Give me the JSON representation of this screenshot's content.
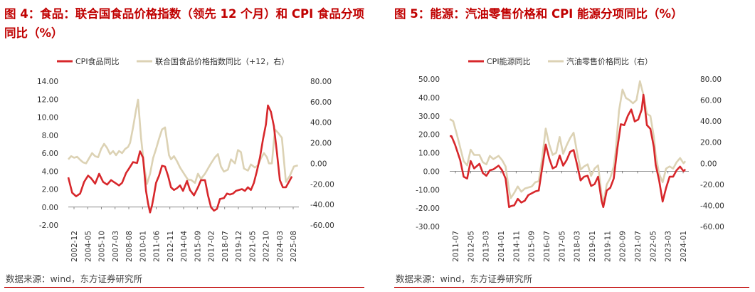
{
  "left": {
    "title": "图 4：食品：联合国食品价格指数（领先 12 个月）和 CPI 食品分项同比（%）",
    "source": "数据来源：wind，东方证券研究所",
    "chart_data": {
      "type": "line",
      "legend": [
        "CPI食品同比",
        "联合国食品价格指数同比（+12，右）"
      ],
      "colors": {
        "cpi": "#d7272b",
        "un": "#dcd2b4",
        "title": "#c00000"
      },
      "y_left": {
        "min": -2,
        "max": 14,
        "step": 2,
        "ticks": [
          "-2.00",
          "0.00",
          "2.00",
          "4.00",
          "6.00",
          "8.00",
          "10.00",
          "12.00",
          "14.00"
        ]
      },
      "y_right": {
        "min": -60,
        "max": 80,
        "step": 20,
        "ticks": [
          "-60.00",
          "-40.00",
          "-20.00",
          "0.00",
          "20.00",
          "40.00",
          "60.00",
          "80.00"
        ]
      },
      "x": {
        "start": 2002.917,
        "end": 2026.0,
        "ticks": [
          "2002-12",
          "2004-05",
          "2005-10",
          "2007-03",
          "2008-08",
          "2010-01",
          "2011-06",
          "2012-11",
          "2014-04",
          "2015-09",
          "2017-02",
          "2018-07",
          "2019-12",
          "2021-05",
          "2022-10",
          "2024-03",
          "2025-08"
        ]
      },
      "series": [
        {
          "name": "CPI食品同比",
          "axis": "left",
          "x": [
            2002.92,
            2003.3,
            2003.7,
            2004.1,
            2004.5,
            2004.9,
            2005.2,
            2005.6,
            2006.0,
            2006.4,
            2006.8,
            2007.2,
            2007.6,
            2008.0,
            2008.3,
            2008.7,
            2009.0,
            2009.4,
            2009.8,
            2010.1,
            2010.4,
            2010.7,
            2010.9,
            2011.1,
            2011.3,
            2011.5,
            2011.7,
            2012.0,
            2012.3,
            2012.6,
            2012.9,
            2013.2,
            2013.5,
            2013.8,
            2014.1,
            2014.4,
            2014.8,
            2015.1,
            2015.5,
            2015.9,
            2016.2,
            2016.6,
            2016.9,
            2017.2,
            2017.5,
            2017.8,
            2018.1,
            2018.5,
            2018.8,
            2019.1,
            2019.4,
            2019.7,
            2020.0,
            2020.3,
            2020.6,
            2020.9,
            2021.2,
            2021.5,
            2021.8,
            2022.1,
            2022.4,
            2022.7,
            2022.9,
            2023.2,
            2023.5,
            2023.8,
            2024.1,
            2024.4,
            2024.7,
            2025.0,
            2025.3
          ],
          "y": [
            3.3,
            1.6,
            1.2,
            1.5,
            2.8,
            3.5,
            3.2,
            2.6,
            3.7,
            2.8,
            2.5,
            3.0,
            2.7,
            2.4,
            2.7,
            3.8,
            4.3,
            5.0,
            4.9,
            6.2,
            5.5,
            1.8,
            0.4,
            -0.6,
            0.2,
            1.4,
            2.7,
            3.5,
            4.6,
            4.5,
            3.5,
            2.2,
            1.9,
            2.1,
            2.4,
            1.8,
            2.9,
            1.9,
            1.3,
            2.2,
            3.0,
            3.0,
            1.3,
            0.0,
            -0.4,
            -0.2,
            0.9,
            1.0,
            1.5,
            1.4,
            1.5,
            1.8,
            1.9,
            2.0,
            1.8,
            2.2,
            1.9,
            2.7,
            4.0,
            5.5,
            7.5,
            9.2,
            11.3,
            10.6,
            9.0,
            6.1,
            3.0,
            2.2,
            2.2,
            2.8,
            3.4
          ]
        },
        {
          "name": "联合国食品价格指数同比（+12，右）",
          "axis": "right",
          "x": [
            2002.92,
            2003.2,
            2003.5,
            2003.8,
            2004.1,
            2004.4,
            2004.7,
            2005.0,
            2005.3,
            2005.6,
            2005.9,
            2006.2,
            2006.5,
            2006.8,
            2007.1,
            2007.4,
            2007.7,
            2008.0,
            2008.3,
            2008.6,
            2008.9,
            2009.1,
            2009.4,
            2009.7,
            2009.9,
            2010.0,
            2010.2,
            2010.5,
            2010.8,
            2011.1,
            2011.4,
            2011.7,
            2012.0,
            2012.3,
            2012.6,
            2012.9,
            2013.0,
            2013.2,
            2013.5,
            2013.8,
            2014.1,
            2014.5,
            2014.9,
            2015.2,
            2015.6,
            2015.9,
            2016.2,
            2016.6,
            2016.9,
            2017.2,
            2017.6,
            2017.9,
            2018.2,
            2018.5,
            2018.9,
            2019.2,
            2019.6,
            2019.9,
            2020.2,
            2020.5,
            2020.9,
            2021.2,
            2021.6,
            2021.9,
            2022.2,
            2022.5,
            2022.8,
            2023.0,
            2023.3,
            2023.6,
            2023.9,
            2024.3,
            2024.7,
            2025.1,
            2025.5,
            2025.9
          ],
          "y": [
            4.0,
            7.0,
            5.5,
            6.5,
            3.5,
            1.0,
            0.0,
            5.0,
            10.0,
            7.0,
            6.0,
            14.0,
            19.0,
            15.0,
            9.0,
            12.0,
            8.0,
            12.0,
            10.0,
            14.0,
            16.0,
            20.0,
            35.0,
            52.0,
            62.0,
            50.0,
            25.0,
            -2.0,
            -20.0,
            -10.0,
            5.0,
            14.0,
            24.0,
            33.0,
            35.0,
            15.0,
            8.0,
            4.0,
            7.0,
            2.0,
            -4.0,
            -10.0,
            -16.0,
            -16.0,
            -19.0,
            -10.0,
            -15.0,
            -10.0,
            -5.0,
            0.0,
            6.0,
            9.0,
            -3.0,
            -8.0,
            -6.0,
            4.0,
            0.0,
            13.0,
            11.0,
            -5.0,
            -7.0,
            -1.0,
            -4.0,
            -2.0,
            5.0,
            10.0,
            6.0,
            0.0,
            0.0,
            33.0,
            30.0,
            25.0,
            -18.0,
            -12.0,
            -3.0,
            -2.0
          ]
        }
      ]
    }
  },
  "right": {
    "title": "图 5：能源：汽油零售价格和 CPI 能源分项同比（%）",
    "source": "数据来源：wind，东方证券研究所",
    "chart_data": {
      "type": "line",
      "legend": [
        "CPI能源同比",
        "汽油零售价格同比（右）"
      ],
      "colors": {
        "cpi": "#d7272b",
        "gas": "#dcd2b4",
        "title": "#c00000"
      },
      "y_left": {
        "min": -30,
        "max": 50,
        "step": 10,
        "ticks": [
          "-30.00",
          "-20.00",
          "-10.00",
          "0.00",
          "10.00",
          "20.00",
          "30.00",
          "40.00",
          "50.00"
        ]
      },
      "y_right": {
        "min": -60,
        "max": 80,
        "step": 20,
        "ticks": [
          "-60.00",
          "-40.00",
          "-20.00",
          "0.00",
          "20.00",
          "40.00",
          "60.00",
          "80.00"
        ]
      },
      "x": {
        "start": 2011.5,
        "end": 2025.2,
        "ticks": [
          "2011-07",
          "2012-05",
          "2013-03",
          "2014-01",
          "2014-11",
          "2015-09",
          "2016-07",
          "2017-05",
          "2018-03",
          "2019-01",
          "2019-11",
          "2020-09",
          "2021-07",
          "2022-05",
          "2023-03",
          "2024-01"
        ]
      },
      "series": [
        {
          "name": "CPI能源同比",
          "axis": "left",
          "x": [
            2011.5,
            2011.6,
            2011.8,
            2012.1,
            2012.3,
            2012.5,
            2012.7,
            2012.9,
            2013.2,
            2013.4,
            2013.6,
            2013.8,
            2014.0,
            2014.3,
            2014.5,
            2014.7,
            2014.9,
            2015.0,
            2015.2,
            2015.4,
            2015.6,
            2015.8,
            2016.0,
            2016.2,
            2016.4,
            2016.6,
            2016.8,
            2017.0,
            2017.2,
            2017.4,
            2017.6,
            2017.8,
            2018.0,
            2018.2,
            2018.4,
            2018.6,
            2018.8,
            2019.0,
            2019.2,
            2019.4,
            2019.6,
            2019.8,
            2020.0,
            2020.2,
            2020.3,
            2020.5,
            2020.7,
            2020.9,
            2021.1,
            2021.3,
            2021.5,
            2021.7,
            2021.9,
            2022.1,
            2022.3,
            2022.5,
            2022.6,
            2022.8,
            2023.0,
            2023.2,
            2023.3,
            2023.5,
            2023.7,
            2023.9,
            2024.1,
            2024.3,
            2024.5,
            2024.7,
            2024.9,
            2025.0
          ],
          "y": [
            19.0,
            19.0,
            14.5,
            6.0,
            -3.0,
            -4.0,
            5.5,
            1.5,
            4.0,
            -1.0,
            -2.5,
            0.5,
            1.0,
            3.0,
            0.5,
            -4.0,
            -19.5,
            -19.0,
            -18.5,
            -15.0,
            -17.0,
            -16.0,
            -13.0,
            -12.0,
            -11.0,
            -10.5,
            2.0,
            14.5,
            7.0,
            1.5,
            2.5,
            8.5,
            3.0,
            6.0,
            10.5,
            11.5,
            3.5,
            -5.0,
            -3.0,
            -2.5,
            -8.0,
            -7.0,
            -3.0,
            -16.0,
            -19.5,
            -10.5,
            -9.0,
            -4.0,
            12.0,
            25.5,
            25.0,
            30.0,
            33.5,
            27.0,
            28.0,
            33.5,
            41.5,
            25.0,
            23.0,
            13.0,
            3.5,
            -5.0,
            -16.5,
            -9.0,
            -3.0,
            -3.0,
            0.5,
            2.5,
            0.0,
            1.0
          ]
        },
        {
          "name": "汽油零售价格同比（右）",
          "axis": "right",
          "x": [
            2011.5,
            2011.7,
            2011.9,
            2012.1,
            2012.3,
            2012.5,
            2012.7,
            2012.9,
            2013.2,
            2013.4,
            2013.6,
            2013.8,
            2014.0,
            2014.3,
            2014.5,
            2014.7,
            2014.9,
            2015.0,
            2015.2,
            2015.4,
            2015.6,
            2015.8,
            2016.0,
            2016.2,
            2016.4,
            2016.6,
            2016.8,
            2017.0,
            2017.2,
            2017.4,
            2017.6,
            2017.8,
            2018.0,
            2018.2,
            2018.4,
            2018.6,
            2018.8,
            2019.0,
            2019.2,
            2019.4,
            2019.6,
            2019.8,
            2020.0,
            2020.2,
            2020.3,
            2020.5,
            2020.7,
            2020.9,
            2021.0,
            2021.2,
            2021.4,
            2021.6,
            2021.8,
            2022.0,
            2022.2,
            2022.4,
            2022.6,
            2022.8,
            2023.0,
            2023.2,
            2023.3,
            2023.5,
            2023.7,
            2023.9,
            2024.1,
            2024.3,
            2024.5,
            2024.7,
            2024.9,
            2025.0
          ],
          "y": [
            42.0,
            40.0,
            28.0,
            15.0,
            2.0,
            -2.0,
            13.0,
            8.0,
            8.0,
            1.0,
            -1.0,
            7.0,
            4.0,
            7.0,
            3.0,
            -3.0,
            -26.0,
            -33.0,
            -28.0,
            -22.0,
            -27.0,
            -24.0,
            -23.0,
            -22.0,
            -18.0,
            -17.0,
            5.0,
            33.0,
            18.0,
            8.0,
            10.0,
            25.0,
            9.0,
            17.0,
            24.0,
            29.0,
            10.0,
            -6.0,
            -3.0,
            -1.0,
            -12.0,
            -5.0,
            -2.0,
            -30.0,
            -38.0,
            -20.0,
            -14.0,
            -3.0,
            10.0,
            50.0,
            70.0,
            62.0,
            60.0,
            57.0,
            60.0,
            78.0,
            65.0,
            47.0,
            45.0,
            25.0,
            8.0,
            -10.0,
            -18.0,
            -5.0,
            -3.0,
            -5.0,
            1.0,
            5.0,
            0.0,
            2.0
          ]
        }
      ]
    }
  }
}
